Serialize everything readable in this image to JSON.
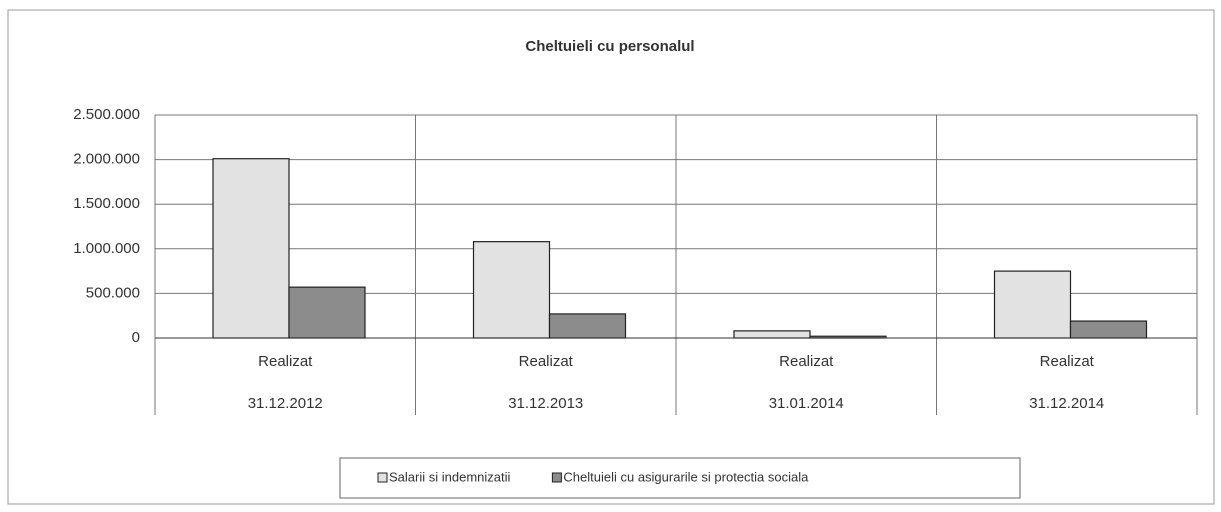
{
  "chart_data": {
    "type": "bar",
    "title": "Cheltuieli cu personalul",
    "categories": [
      [
        "Realizat",
        "31.12.2012"
      ],
      [
        "Realizat",
        "31.12.2013"
      ],
      [
        "Realizat",
        "31.01.2014"
      ],
      [
        "Realizat",
        "31.12.2014"
      ]
    ],
    "series": [
      {
        "name": "Salarii si indemnizatii",
        "color": "#e2e2e2",
        "values": [
          2010000,
          1080000,
          80000,
          750000
        ]
      },
      {
        "name": "Cheltuieli cu asigurarile si protectia sociala",
        "color": "#8c8c8c",
        "values": [
          570000,
          270000,
          20000,
          190000
        ]
      }
    ],
    "ylim": [
      0,
      2500000
    ],
    "yticks": [
      0,
      {
        "value": 500000,
        "label": "500.000"
      },
      {
        "value": 1000000,
        "label": "1.000.000"
      },
      {
        "value": 1500000,
        "label": "1.500.000"
      },
      {
        "value": 2000000,
        "label": "2.000.000"
      },
      {
        "value": 2500000,
        "label": "2.500.000"
      }
    ],
    "grid": true,
    "legend": "bottom"
  }
}
